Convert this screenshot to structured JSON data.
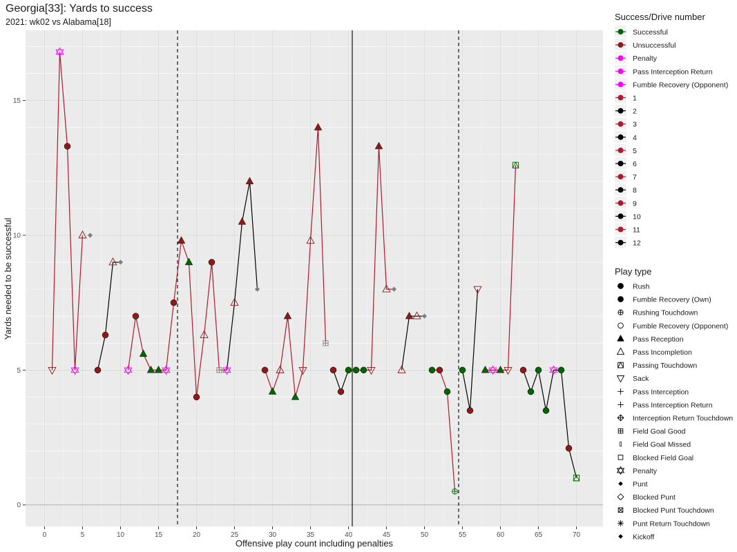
{
  "title": "Georgia[33]: Yards to success",
  "subtitle": "2021: wk02 vs Alabama[18]",
  "chart_data": {
    "type": "scatter",
    "xlabel": "Offensive play count including penalties",
    "ylabel": "Yards needed to be successful",
    "xlim": [
      -2.5,
      73.5
    ],
    "ylim": [
      -0.8,
      17.6
    ],
    "xticks": [
      0,
      5,
      10,
      15,
      20,
      25,
      30,
      35,
      40,
      45,
      50,
      55,
      60,
      65,
      70
    ],
    "yticks": [
      0,
      5,
      10,
      15
    ],
    "grid": true,
    "vlines": [
      {
        "x": 17.5,
        "style": "dashed"
      },
      {
        "x": 40.5,
        "style": "solid"
      },
      {
        "x": 54.5,
        "style": "dashed"
      }
    ],
    "hline": 0,
    "colors": {
      "Successful": "#006400",
      "Unsuccessful": "#8b1a1a",
      "Penalty": "#ff00ff",
      "odd_drive": "#b2182b",
      "even_drive": "#000000",
      "other": "#7f7f7f"
    },
    "drives": [
      {
        "drive": 1,
        "plays": [
          1,
          2,
          3,
          4,
          5
        ]
      },
      {
        "drive": 2,
        "plays": [
          7,
          8,
          9,
          10
        ]
      },
      {
        "drive": 3,
        "plays": [
          11,
          12,
          13,
          14,
          15,
          16,
          17,
          18
        ]
      },
      {
        "drive": 3,
        "plays": [
          18,
          19,
          20,
          21,
          22,
          23,
          24
        ]
      },
      {
        "drive": 4,
        "plays": [
          24,
          25,
          26,
          27,
          28
        ]
      },
      {
        "drive": 5,
        "plays": [
          29,
          30,
          31,
          32,
          33,
          34,
          35,
          36,
          37
        ]
      },
      {
        "drive": 6,
        "plays": [
          38,
          39,
          40
        ]
      },
      {
        "drive": 7,
        "plays": [
          41,
          42,
          43,
          44,
          45,
          46
        ]
      },
      {
        "drive": 8,
        "plays": [
          47,
          48,
          49,
          50
        ]
      },
      {
        "drive": 9,
        "plays": [
          51,
          52,
          53,
          54
        ]
      },
      {
        "drive": 10,
        "plays": [
          55,
          56,
          57
        ]
      },
      {
        "drive": 11,
        "plays": [
          58,
          59,
          60,
          61,
          62
        ]
      },
      {
        "drive": 12,
        "plays": [
          63,
          64,
          65,
          66,
          67,
          68,
          69,
          70
        ]
      }
    ],
    "points": [
      {
        "x": 1,
        "y": 5,
        "shape": "sack",
        "color": "Unsuccessful"
      },
      {
        "x": 2,
        "y": 16.8,
        "shape": "penalty",
        "color": "Penalty"
      },
      {
        "x": 3,
        "y": 13.3,
        "shape": "rush",
        "color": "Unsuccessful"
      },
      {
        "x": 4,
        "y": 5,
        "shape": "penalty",
        "color": "Penalty"
      },
      {
        "x": 5,
        "y": 10,
        "shape": "pass_incompletion",
        "color": "Unsuccessful"
      },
      {
        "x": 6,
        "y": 10,
        "shape": "punt",
        "color": "other"
      },
      {
        "x": 7,
        "y": 5,
        "shape": "rush",
        "color": "Unsuccessful"
      },
      {
        "x": 8,
        "y": 6.3,
        "shape": "rush",
        "color": "Unsuccessful"
      },
      {
        "x": 9,
        "y": 9,
        "shape": "pass_incompletion",
        "color": "Unsuccessful"
      },
      {
        "x": 10,
        "y": 9,
        "shape": "punt",
        "color": "other"
      },
      {
        "x": 11,
        "y": 5,
        "shape": "penalty",
        "color": "Penalty"
      },
      {
        "x": 12,
        "y": 7,
        "shape": "rush",
        "color": "Unsuccessful"
      },
      {
        "x": 13,
        "y": 5.6,
        "shape": "pass_reception",
        "color": "Successful"
      },
      {
        "x": 14,
        "y": 5,
        "shape": "pass_reception",
        "color": "Successful"
      },
      {
        "x": 15,
        "y": 5,
        "shape": "pass_reception",
        "color": "Successful"
      },
      {
        "x": 16,
        "y": 5,
        "shape": "penalty",
        "color": "Penalty"
      },
      {
        "x": 17,
        "y": 7.5,
        "shape": "rush",
        "color": "Unsuccessful"
      },
      {
        "x": 18,
        "y": 9.8,
        "shape": "pass_reception",
        "color": "Unsuccessful"
      },
      {
        "x": 19,
        "y": 9,
        "shape": "pass_reception",
        "color": "Successful"
      },
      {
        "x": 20,
        "y": 4,
        "shape": "rush",
        "color": "Unsuccessful"
      },
      {
        "x": 21,
        "y": 6.3,
        "shape": "pass_incompletion",
        "color": "Unsuccessful"
      },
      {
        "x": 22,
        "y": 9,
        "shape": "rush",
        "color": "Unsuccessful"
      },
      {
        "x": 23,
        "y": 5,
        "shape": "field_goal_good",
        "color": "other"
      },
      {
        "x": 24,
        "y": 5,
        "shape": "penalty",
        "color": "Penalty"
      },
      {
        "x": 25,
        "y": 7.5,
        "shape": "pass_incompletion",
        "color": "Unsuccessful"
      },
      {
        "x": 26,
        "y": 10.5,
        "shape": "pass_reception",
        "color": "Unsuccessful"
      },
      {
        "x": 27,
        "y": 12,
        "shape": "pass_reception",
        "color": "Unsuccessful"
      },
      {
        "x": 28,
        "y": 8,
        "shape": "punt",
        "color": "other"
      },
      {
        "x": 29,
        "y": 5,
        "shape": "rush",
        "color": "Unsuccessful"
      },
      {
        "x": 30,
        "y": 4.2,
        "shape": "pass_reception",
        "color": "Successful"
      },
      {
        "x": 31,
        "y": 5,
        "shape": "pass_incompletion",
        "color": "Unsuccessful"
      },
      {
        "x": 32,
        "y": 7,
        "shape": "pass_reception",
        "color": "Unsuccessful"
      },
      {
        "x": 33,
        "y": 4,
        "shape": "pass_reception",
        "color": "Successful"
      },
      {
        "x": 34,
        "y": 5,
        "shape": "sack",
        "color": "Unsuccessful"
      },
      {
        "x": 35,
        "y": 9.8,
        "shape": "pass_incompletion",
        "color": "Unsuccessful"
      },
      {
        "x": 36,
        "y": 14,
        "shape": "pass_reception",
        "color": "Unsuccessful"
      },
      {
        "x": 37,
        "y": 6,
        "shape": "field_goal_good",
        "color": "other"
      },
      {
        "x": 38,
        "y": 5,
        "shape": "rush",
        "color": "Unsuccessful"
      },
      {
        "x": 39,
        "y": 4.2,
        "shape": "rush",
        "color": "Unsuccessful"
      },
      {
        "x": 40,
        "y": 5,
        "shape": "rush",
        "color": "Successful"
      },
      {
        "x": 41,
        "y": 5,
        "shape": "rush",
        "color": "Successful"
      },
      {
        "x": 42,
        "y": 5,
        "shape": "rush",
        "color": "Successful"
      },
      {
        "x": 43,
        "y": 5,
        "shape": "sack",
        "color": "Unsuccessful"
      },
      {
        "x": 44,
        "y": 13.3,
        "shape": "pass_reception",
        "color": "Unsuccessful"
      },
      {
        "x": 45,
        "y": 8,
        "shape": "pass_incompletion",
        "color": "Unsuccessful"
      },
      {
        "x": 46,
        "y": 8,
        "shape": "punt",
        "color": "other"
      },
      {
        "x": 47,
        "y": 5,
        "shape": "pass_incompletion",
        "color": "Unsuccessful"
      },
      {
        "x": 48,
        "y": 7,
        "shape": "pass_reception",
        "color": "Unsuccessful"
      },
      {
        "x": 49,
        "y": 7,
        "shape": "pass_incompletion",
        "color": "Unsuccessful"
      },
      {
        "x": 50,
        "y": 7,
        "shape": "punt",
        "color": "other"
      },
      {
        "x": 51,
        "y": 5,
        "shape": "rush",
        "color": "Successful"
      },
      {
        "x": 52,
        "y": 5,
        "shape": "rush",
        "color": "Unsuccessful"
      },
      {
        "x": 53,
        "y": 4.2,
        "shape": "rush",
        "color": "Successful"
      },
      {
        "x": 54,
        "y": 0.5,
        "shape": "rushing_touchdown",
        "color": "Successful"
      },
      {
        "x": 55,
        "y": 5,
        "shape": "rush",
        "color": "Successful"
      },
      {
        "x": 56,
        "y": 3.5,
        "shape": "rush",
        "color": "Unsuccessful"
      },
      {
        "x": 57,
        "y": 8,
        "shape": "sack",
        "color": "Unsuccessful"
      },
      {
        "x": 58,
        "y": 5,
        "shape": "pass_reception",
        "color": "Successful"
      },
      {
        "x": 59,
        "y": 5,
        "shape": "penalty",
        "color": "Penalty"
      },
      {
        "x": 60,
        "y": 5,
        "shape": "pass_reception",
        "color": "Successful"
      },
      {
        "x": 61,
        "y": 5,
        "shape": "sack",
        "color": "Unsuccessful"
      },
      {
        "x": 62,
        "y": 12.6,
        "shape": "passing_touchdown",
        "color": "Successful"
      },
      {
        "x": 63,
        "y": 5,
        "shape": "rush",
        "color": "Unsuccessful"
      },
      {
        "x": 64,
        "y": 4.2,
        "shape": "rush",
        "color": "Successful"
      },
      {
        "x": 65,
        "y": 5,
        "shape": "rush",
        "color": "Successful"
      },
      {
        "x": 66,
        "y": 3.5,
        "shape": "rush",
        "color": "Successful"
      },
      {
        "x": 67,
        "y": 5,
        "shape": "penalty",
        "color": "Penalty"
      },
      {
        "x": 68,
        "y": 5,
        "shape": "rush",
        "color": "Successful"
      },
      {
        "x": 69,
        "y": 2.1,
        "shape": "rush",
        "color": "Unsuccessful"
      },
      {
        "x": 70,
        "y": 1,
        "shape": "passing_touchdown",
        "color": "Successful"
      }
    ]
  },
  "legend": {
    "success_title": "Success/Drive number",
    "success_items": [
      {
        "label": "Successful",
        "color": "#006400"
      },
      {
        "label": "Unsuccessful",
        "color": "#8b1a1a"
      },
      {
        "label": "Penalty",
        "color": "#ff00ff"
      },
      {
        "label": "Pass Interception Return",
        "color": "#ff00ff"
      },
      {
        "label": "Fumble Recovery (Opponent)",
        "color": "#ff00ff"
      },
      {
        "label": "1",
        "color": "#b2182b"
      },
      {
        "label": "2",
        "color": "#000000"
      },
      {
        "label": "3",
        "color": "#b2182b"
      },
      {
        "label": "4",
        "color": "#000000"
      },
      {
        "label": "5",
        "color": "#b2182b"
      },
      {
        "label": "6",
        "color": "#000000"
      },
      {
        "label": "7",
        "color": "#b2182b"
      },
      {
        "label": "8",
        "color": "#000000"
      },
      {
        "label": "9",
        "color": "#b2182b"
      },
      {
        "label": "10",
        "color": "#000000"
      },
      {
        "label": "11",
        "color": "#b2182b"
      },
      {
        "label": "12",
        "color": "#000000"
      }
    ],
    "play_title": "Play type",
    "play_items": [
      {
        "label": "Rush",
        "shape": "rush"
      },
      {
        "label": "Fumble Recovery (Own)",
        "shape": "rush"
      },
      {
        "label": "Rushing Touchdown",
        "shape": "rushing_touchdown"
      },
      {
        "label": "Fumble Recovery (Opponent)",
        "shape": "open_circle"
      },
      {
        "label": "Pass Reception",
        "shape": "pass_reception"
      },
      {
        "label": "Pass Incompletion",
        "shape": "pass_incompletion"
      },
      {
        "label": "Passing Touchdown",
        "shape": "passing_touchdown"
      },
      {
        "label": "Sack",
        "shape": "sack"
      },
      {
        "label": "Pass Interception",
        "shape": "plus"
      },
      {
        "label": "Pass Interception Return",
        "shape": "plus"
      },
      {
        "label": "Interception Return Touchdown",
        "shape": "diamond_plus"
      },
      {
        "label": "Field Goal Good",
        "shape": "field_goal_good"
      },
      {
        "label": "Field Goal Missed",
        "shape": "bar"
      },
      {
        "label": "Blocked Field Goal",
        "shape": "open_square"
      },
      {
        "label": "Penalty",
        "shape": "penalty"
      },
      {
        "label": "Punt",
        "shape": "punt"
      },
      {
        "label": "Blocked Punt",
        "shape": "open_diamond"
      },
      {
        "label": "Blocked Punt Touchdown",
        "shape": "square_x"
      },
      {
        "label": "Punt Return Touchdown",
        "shape": "asterisk"
      },
      {
        "label": "Kickoff",
        "shape": "punt"
      }
    ]
  }
}
